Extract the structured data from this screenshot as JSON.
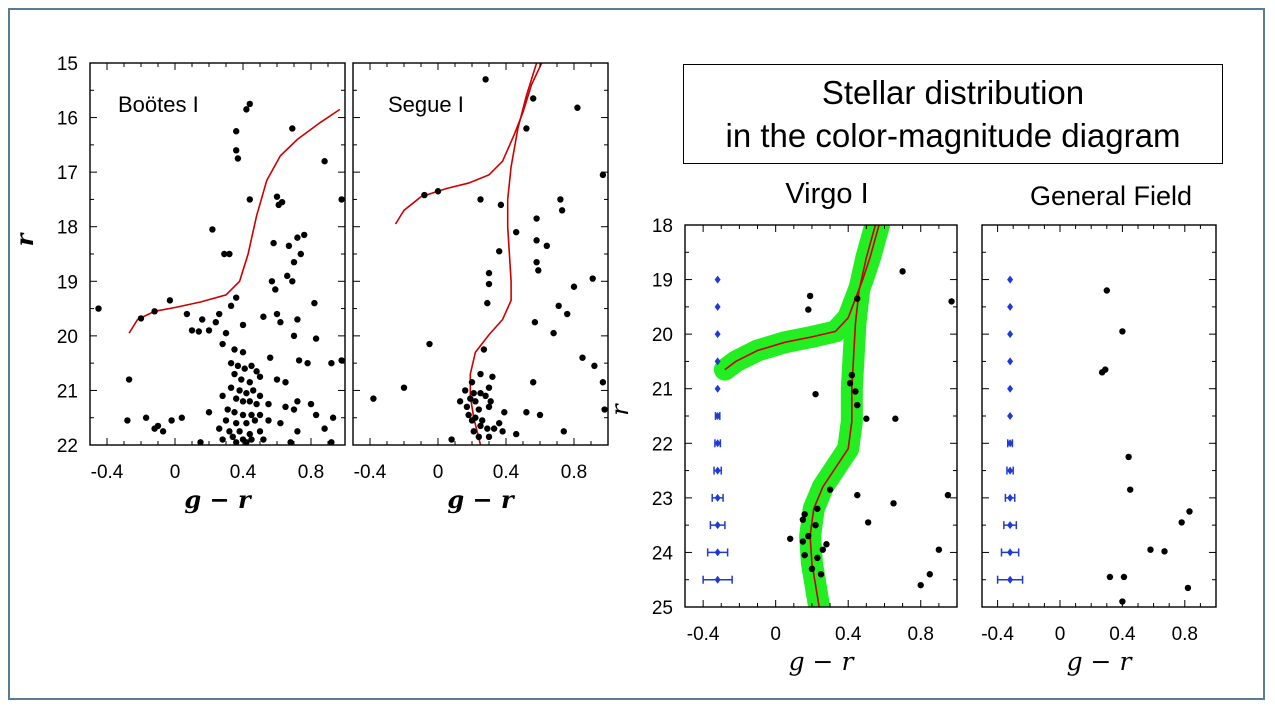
{
  "figure": {
    "title_lines": [
      "Stellar distribution",
      "in the color-magnitude diagram"
    ]
  },
  "colors": {
    "border": "#5b7b93",
    "isochrone": "#cc0000",
    "isochrone_band": "#22ee22",
    "error_bars": "#1f3ad6",
    "stars": "#000000"
  },
  "chart_data": [
    {
      "type": "scatter",
      "label": "Boötes I",
      "xlabel": "g − r",
      "ylabel": "r",
      "xlim": [
        -0.5,
        1.0
      ],
      "ylim": [
        22,
        15
      ],
      "xticks": [
        "-0.4",
        "0",
        "0.4",
        "0.8"
      ],
      "yticks": [
        "15",
        "16",
        "17",
        "18",
        "19",
        "20",
        "21",
        "22"
      ],
      "isochrone": [
        [
          -0.27,
          19.95
        ],
        [
          -0.22,
          19.7
        ],
        [
          -0.12,
          19.55
        ],
        [
          0.0,
          19.48
        ],
        [
          0.15,
          19.38
        ],
        [
          0.3,
          19.25
        ],
        [
          0.38,
          19.0
        ],
        [
          0.43,
          18.5
        ],
        [
          0.48,
          17.8
        ],
        [
          0.54,
          17.15
        ],
        [
          0.62,
          16.7
        ],
        [
          0.72,
          16.4
        ],
        [
          0.85,
          16.1
        ],
        [
          0.97,
          15.85
        ]
      ],
      "points": [
        [
          0.44,
          15.75
        ],
        [
          0.42,
          15.85
        ],
        [
          0.36,
          16.25
        ],
        [
          0.36,
          16.6
        ],
        [
          0.37,
          16.75
        ],
        [
          0.69,
          16.2
        ],
        [
          0.88,
          16.8
        ],
        [
          0.98,
          17.5
        ],
        [
          0.6,
          17.45
        ],
        [
          0.61,
          17.6
        ],
        [
          0.63,
          17.55
        ],
        [
          0.44,
          17.5
        ],
        [
          0.22,
          18.05
        ],
        [
          0.29,
          18.5
        ],
        [
          0.32,
          18.5
        ],
        [
          0.58,
          18.3
        ],
        [
          0.72,
          18.2
        ],
        [
          0.76,
          18.15
        ],
        [
          0.67,
          18.35
        ],
        [
          0.74,
          18.5
        ],
        [
          0.7,
          18.65
        ],
        [
          0.66,
          18.9
        ],
        [
          0.69,
          19.0
        ],
        [
          0.57,
          19.0
        ],
        [
          0.59,
          19.15
        ],
        [
          -0.45,
          19.5
        ],
        [
          -0.03,
          19.35
        ],
        [
          -0.12,
          19.55
        ],
        [
          -0.2,
          19.68
        ],
        [
          0.07,
          19.6
        ],
        [
          0.26,
          19.6
        ],
        [
          0.33,
          19.45
        ],
        [
          0.36,
          19.3
        ],
        [
          0.16,
          19.7
        ],
        [
          0.24,
          19.75
        ],
        [
          0.4,
          19.8
        ],
        [
          0.52,
          19.65
        ],
        [
          0.6,
          19.6
        ],
        [
          0.62,
          19.75
        ],
        [
          0.72,
          19.7
        ],
        [
          0.82,
          19.4
        ],
        [
          0.1,
          19.9
        ],
        [
          0.14,
          19.92
        ],
        [
          0.2,
          19.9
        ],
        [
          0.3,
          19.95
        ],
        [
          0.7,
          20.0
        ],
        [
          0.83,
          20.05
        ],
        [
          0.28,
          20.15
        ],
        [
          0.35,
          20.25
        ],
        [
          0.4,
          20.3
        ],
        [
          0.56,
          20.4
        ],
        [
          0.73,
          20.45
        ],
        [
          0.78,
          20.5
        ],
        [
          0.92,
          20.5
        ],
        [
          0.98,
          20.45
        ],
        [
          0.33,
          20.5
        ],
        [
          0.37,
          20.55
        ],
        [
          0.41,
          20.6
        ],
        [
          0.45,
          20.55
        ],
        [
          0.48,
          20.65
        ],
        [
          0.35,
          20.7
        ],
        [
          0.39,
          20.8
        ],
        [
          0.44,
          20.85
        ],
        [
          0.5,
          20.75
        ],
        [
          0.6,
          20.8
        ],
        [
          0.65,
          20.85
        ],
        [
          -0.27,
          20.8
        ],
        [
          0.33,
          20.95
        ],
        [
          0.38,
          21.0
        ],
        [
          0.42,
          21.05
        ],
        [
          0.46,
          21.0
        ],
        [
          0.5,
          21.1
        ],
        [
          0.28,
          21.1
        ],
        [
          0.36,
          21.15
        ],
        [
          0.4,
          21.2
        ],
        [
          0.44,
          21.2
        ],
        [
          0.48,
          21.25
        ],
        [
          0.55,
          21.25
        ],
        [
          0.72,
          21.2
        ],
        [
          0.8,
          21.25
        ],
        [
          0.65,
          21.3
        ],
        [
          0.7,
          21.35
        ],
        [
          0.31,
          21.35
        ],
        [
          0.35,
          21.4
        ],
        [
          0.4,
          21.45
        ],
        [
          0.45,
          21.45
        ],
        [
          0.5,
          21.45
        ],
        [
          0.2,
          21.4
        ],
        [
          0.83,
          21.45
        ],
        [
          0.93,
          21.5
        ],
        [
          -0.28,
          21.55
        ],
        [
          -0.17,
          21.5
        ],
        [
          -0.02,
          21.55
        ],
        [
          0.04,
          21.5
        ],
        [
          0.3,
          21.55
        ],
        [
          0.36,
          21.6
        ],
        [
          0.42,
          21.6
        ],
        [
          0.47,
          21.55
        ],
        [
          0.55,
          21.55
        ],
        [
          0.62,
          21.6
        ],
        [
          -0.1,
          21.65
        ],
        [
          -0.07,
          21.75
        ],
        [
          -0.12,
          21.7
        ],
        [
          0.26,
          21.7
        ],
        [
          0.32,
          21.75
        ],
        [
          0.38,
          21.75
        ],
        [
          0.44,
          21.8
        ],
        [
          0.5,
          21.75
        ],
        [
          0.72,
          21.75
        ],
        [
          0.88,
          21.7
        ],
        [
          0.34,
          21.85
        ],
        [
          0.4,
          21.9
        ],
        [
          0.45,
          21.9
        ],
        [
          0.52,
          21.9
        ],
        [
          0.28,
          21.9
        ],
        [
          0.36,
          21.95
        ],
        [
          0.42,
          21.95
        ],
        [
          0.15,
          21.95
        ],
        [
          0.68,
          21.95
        ],
        [
          0.92,
          21.95
        ]
      ]
    },
    {
      "type": "scatter",
      "label": "Segue I",
      "xlabel": "g − r",
      "ylabel": "",
      "xlim": [
        -0.5,
        1.0
      ],
      "ylim": [
        22,
        15
      ],
      "xticks": [
        "-0.4",
        "0",
        "0.4",
        "0.8"
      ],
      "yticks": [],
      "isochrone": [
        [
          -0.25,
          17.95
        ],
        [
          -0.2,
          17.7
        ],
        [
          -0.1,
          17.45
        ],
        [
          0.05,
          17.3
        ],
        [
          0.18,
          17.2
        ],
        [
          0.3,
          17.05
        ],
        [
          0.38,
          16.8
        ],
        [
          0.45,
          16.3
        ],
        [
          0.5,
          15.9
        ],
        [
          0.55,
          15.4
        ],
        [
          0.61,
          15.0
        ]
      ],
      "isochrone2": [
        [
          0.58,
          15.0
        ],
        [
          0.52,
          15.6
        ],
        [
          0.47,
          16.2
        ],
        [
          0.43,
          16.9
        ],
        [
          0.41,
          17.5
        ],
        [
          0.41,
          18.0
        ],
        [
          0.42,
          18.5
        ],
        [
          0.43,
          19.0
        ],
        [
          0.43,
          19.35
        ],
        [
          0.38,
          19.7
        ],
        [
          0.3,
          19.98
        ],
        [
          0.22,
          20.3
        ],
        [
          0.19,
          20.7
        ],
        [
          0.19,
          21.1
        ],
        [
          0.21,
          21.5
        ],
        [
          0.25,
          22.0
        ]
      ],
      "points": [
        [
          0.28,
          15.3
        ],
        [
          0.56,
          15.65
        ],
        [
          0.82,
          15.82
        ],
        [
          0.52,
          16.2
        ],
        [
          0.0,
          17.35
        ],
        [
          -0.08,
          17.42
        ],
        [
          0.25,
          17.5
        ],
        [
          0.72,
          17.5
        ],
        [
          0.37,
          17.6
        ],
        [
          0.73,
          17.7
        ],
        [
          0.97,
          17.05
        ],
        [
          0.58,
          17.85
        ],
        [
          0.46,
          18.1
        ],
        [
          0.58,
          18.25
        ],
        [
          0.64,
          18.35
        ],
        [
          0.36,
          18.45
        ],
        [
          0.58,
          18.65
        ],
        [
          0.59,
          18.8
        ],
        [
          0.3,
          18.85
        ],
        [
          0.3,
          19.05
        ],
        [
          0.91,
          18.95
        ],
        [
          0.8,
          19.1
        ],
        [
          0.29,
          19.4
        ],
        [
          0.71,
          19.45
        ],
        [
          0.76,
          19.6
        ],
        [
          0.57,
          19.75
        ],
        [
          0.68,
          19.95
        ],
        [
          -0.05,
          20.15
        ],
        [
          0.27,
          20.25
        ],
        [
          0.85,
          20.4
        ],
        [
          0.92,
          20.55
        ],
        [
          0.25,
          20.7
        ],
        [
          0.32,
          20.75
        ],
        [
          0.2,
          20.85
        ],
        [
          0.3,
          20.95
        ],
        [
          0.56,
          20.85
        ],
        [
          -0.2,
          20.95
        ],
        [
          0.97,
          20.85
        ],
        [
          0.16,
          21.0
        ],
        [
          0.21,
          21.05
        ],
        [
          0.25,
          21.05
        ],
        [
          0.28,
          21.1
        ],
        [
          0.19,
          21.15
        ],
        [
          0.22,
          21.2
        ],
        [
          0.13,
          21.2
        ],
        [
          0.31,
          21.2
        ],
        [
          -0.38,
          21.15
        ],
        [
          0.17,
          21.3
        ],
        [
          0.24,
          21.35
        ],
        [
          0.3,
          21.3
        ],
        [
          0.39,
          21.4
        ],
        [
          0.52,
          21.4
        ],
        [
          0.6,
          21.45
        ],
        [
          0.18,
          21.45
        ],
        [
          0.22,
          21.5
        ],
        [
          0.26,
          21.55
        ],
        [
          0.2,
          21.55
        ],
        [
          0.36,
          21.6
        ],
        [
          0.25,
          21.65
        ],
        [
          0.29,
          21.7
        ],
        [
          0.33,
          21.7
        ],
        [
          0.21,
          21.75
        ],
        [
          0.38,
          21.75
        ],
        [
          0.74,
          21.75
        ],
        [
          0.24,
          21.85
        ],
        [
          0.3,
          21.85
        ],
        [
          0.08,
          21.9
        ],
        [
          0.46,
          21.8
        ],
        [
          0.98,
          21.35
        ]
      ]
    },
    {
      "type": "scatter",
      "label": "Virgo I",
      "xlabel": "g − r",
      "ylabel": "r",
      "xlim": [
        -0.5,
        1.0
      ],
      "ylim": [
        25,
        18
      ],
      "xticks": [
        "-0.4",
        "0",
        "0.4",
        "0.8"
      ],
      "yticks": [
        "18",
        "19",
        "20",
        "21",
        "22",
        "23",
        "24",
        "25"
      ],
      "isochrone": [
        [
          -0.28,
          20.65
        ],
        [
          -0.22,
          20.5
        ],
        [
          -0.1,
          20.3
        ],
        [
          0.05,
          20.15
        ],
        [
          0.2,
          20.05
        ],
        [
          0.33,
          19.95
        ],
        [
          0.4,
          19.7
        ],
        [
          0.44,
          19.35
        ],
        [
          0.48,
          19.0
        ],
        [
          0.52,
          18.6
        ],
        [
          0.57,
          18.0
        ]
      ],
      "isochrone2": [
        [
          0.55,
          18.0
        ],
        [
          0.5,
          18.6
        ],
        [
          0.46,
          19.2
        ],
        [
          0.44,
          19.8
        ],
        [
          0.43,
          20.4
        ],
        [
          0.42,
          21.0
        ],
        [
          0.42,
          21.6
        ],
        [
          0.4,
          22.1
        ],
        [
          0.33,
          22.45
        ],
        [
          0.26,
          22.8
        ],
        [
          0.21,
          23.2
        ],
        [
          0.19,
          23.7
        ],
        [
          0.2,
          24.2
        ],
        [
          0.22,
          24.6
        ],
        [
          0.24,
          25.0
        ]
      ],
      "errorbars_x": -0.32,
      "errorbars": [
        [
          19.0,
          0.005
        ],
        [
          19.5,
          0.005
        ],
        [
          20.0,
          0.006
        ],
        [
          20.5,
          0.008
        ],
        [
          21.0,
          0.01
        ],
        [
          21.5,
          0.012
        ],
        [
          22.0,
          0.015
        ],
        [
          22.5,
          0.02
        ],
        [
          23.0,
          0.03
        ],
        [
          23.5,
          0.04
        ],
        [
          24.0,
          0.055
        ],
        [
          24.5,
          0.08
        ]
      ],
      "points": [
        [
          0.7,
          18.85
        ],
        [
          0.19,
          19.3
        ],
        [
          0.45,
          19.35
        ],
        [
          0.97,
          19.4
        ],
        [
          0.18,
          19.55
        ],
        [
          0.42,
          20.75
        ],
        [
          0.41,
          20.9
        ],
        [
          0.44,
          21.05
        ],
        [
          0.22,
          21.1
        ],
        [
          0.45,
          21.3
        ],
        [
          0.5,
          21.55
        ],
        [
          0.66,
          21.55
        ],
        [
          0.3,
          22.85
        ],
        [
          0.45,
          22.95
        ],
        [
          0.95,
          22.95
        ],
        [
          0.65,
          23.1
        ],
        [
          0.23,
          23.2
        ],
        [
          0.16,
          23.3
        ],
        [
          0.15,
          23.4
        ],
        [
          0.51,
          23.45
        ],
        [
          0.22,
          23.5
        ],
        [
          0.18,
          23.7
        ],
        [
          0.08,
          23.75
        ],
        [
          0.15,
          23.8
        ],
        [
          0.28,
          23.85
        ],
        [
          0.26,
          23.95
        ],
        [
          0.16,
          24.05
        ],
        [
          0.23,
          24.1
        ],
        [
          0.9,
          23.95
        ],
        [
          0.2,
          24.3
        ],
        [
          0.25,
          24.4
        ],
        [
          0.85,
          24.4
        ],
        [
          0.8,
          24.6
        ]
      ]
    },
    {
      "type": "scatter",
      "label": "General Field",
      "xlabel": "g − r",
      "ylabel": "",
      "xlim": [
        -0.5,
        1.0
      ],
      "ylim": [
        25,
        18
      ],
      "xticks": [
        "-0.4",
        "0",
        "0.4",
        "0.8"
      ],
      "yticks": [],
      "errorbars_x": -0.32,
      "errorbars": [
        [
          19.0,
          0.005
        ],
        [
          19.5,
          0.005
        ],
        [
          20.0,
          0.006
        ],
        [
          20.5,
          0.008
        ],
        [
          21.0,
          0.01
        ],
        [
          21.5,
          0.012
        ],
        [
          22.0,
          0.015
        ],
        [
          22.5,
          0.02
        ],
        [
          23.0,
          0.03
        ],
        [
          23.5,
          0.04
        ],
        [
          24.0,
          0.055
        ],
        [
          24.5,
          0.08
        ]
      ],
      "points": [
        [
          0.3,
          19.2
        ],
        [
          0.4,
          19.95
        ],
        [
          0.29,
          20.65
        ],
        [
          0.27,
          20.7
        ],
        [
          0.44,
          22.25
        ],
        [
          0.45,
          22.85
        ],
        [
          0.83,
          23.25
        ],
        [
          0.78,
          23.45
        ],
        [
          0.58,
          23.95
        ],
        [
          0.67,
          23.98
        ],
        [
          0.32,
          24.45
        ],
        [
          0.41,
          24.45
        ],
        [
          0.82,
          24.65
        ],
        [
          0.4,
          24.9
        ]
      ]
    }
  ]
}
